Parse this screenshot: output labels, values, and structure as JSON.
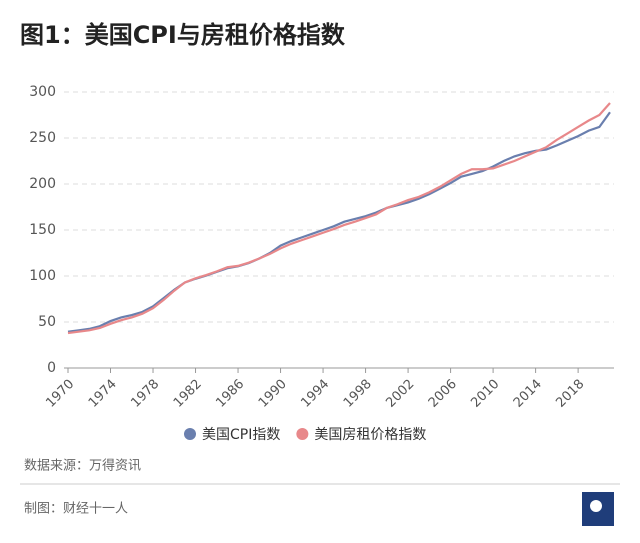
{
  "chart_data": {
    "type": "line",
    "title": "图1：美国CPI与房租价格指数",
    "x": [
      1970,
      1971,
      1972,
      1973,
      1974,
      1975,
      1976,
      1977,
      1978,
      1979,
      1980,
      1981,
      1982,
      1983,
      1984,
      1985,
      1986,
      1987,
      1988,
      1989,
      1990,
      1991,
      1992,
      1993,
      1994,
      1995,
      1996,
      1997,
      1998,
      1999,
      2000,
      2001,
      2002,
      2003,
      2004,
      2005,
      2006,
      2007,
      2008,
      2009,
      2010,
      2011,
      2012,
      2013,
      2014,
      2015,
      2016,
      2017,
      2018,
      2019,
      2020,
      2021
    ],
    "series": [
      {
        "name": "美国CPI指数",
        "color": "#6a7fae",
        "values": [
          39.5,
          41,
          42.5,
          45.5,
          51,
          55,
          57.5,
          61,
          67,
          76,
          85,
          93,
          97,
          100.5,
          104.5,
          108.5,
          110.5,
          114,
          119,
          125,
          133,
          138,
          142,
          146,
          150,
          154,
          159,
          162,
          165,
          169,
          174,
          177,
          180,
          184,
          189,
          195,
          201,
          208,
          211,
          214,
          219,
          225,
          230,
          233.5,
          236,
          237.5,
          242,
          247,
          252,
          258,
          262,
          278
        ]
      },
      {
        "name": "美国房租价格指数",
        "color": "#e8888a",
        "values": [
          38,
          39.5,
          41,
          43.5,
          48,
          52,
          55,
          59,
          65,
          74,
          84,
          93,
          97.5,
          101,
          105,
          109.5,
          111,
          114.5,
          119,
          124,
          130,
          135,
          139,
          143,
          147,
          151,
          155.5,
          159,
          163,
          167,
          174,
          178,
          182.5,
          186,
          191,
          197,
          204,
          211,
          216,
          216,
          217,
          221,
          225,
          230,
          235,
          240,
          248,
          255,
          262,
          269,
          275,
          288
        ]
      }
    ],
    "xlim": [
      1970,
      2021
    ],
    "xticks": [
      1970,
      1974,
      1978,
      1982,
      1986,
      1990,
      1994,
      1998,
      2002,
      2006,
      2010,
      2014,
      2018
    ],
    "ylim": [
      0,
      300
    ],
    "yticks": [
      0,
      50,
      100,
      150,
      200,
      250,
      300
    ],
    "grid": true,
    "legend": "bottom",
    "source": "数据来源：万得资讯",
    "credit": "制图：财经十一人"
  }
}
